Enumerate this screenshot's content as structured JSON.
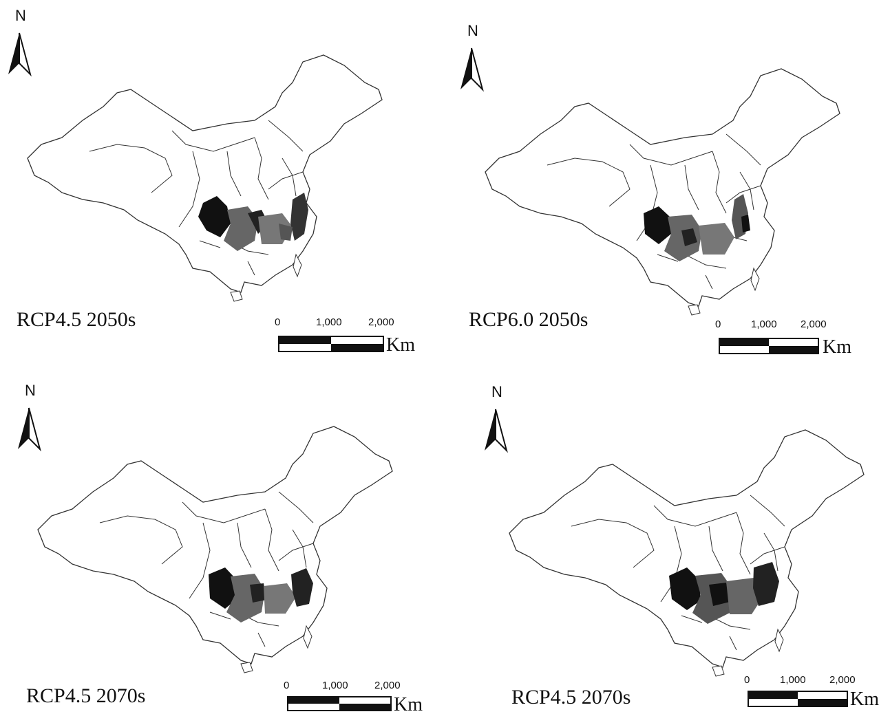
{
  "panels": [
    {
      "north": "N",
      "caption": "RCP4.5 2050s",
      "scale": {
        "ticks": [
          "0",
          "1,000",
          "2,000"
        ],
        "unit": "Km"
      }
    },
    {
      "north": "N",
      "caption": "RCP6.0 2050s",
      "scale": {
        "ticks": [
          "0",
          "1,000",
          "2,000"
        ],
        "unit": "Km"
      }
    },
    {
      "north": "N",
      "caption": "RCP4.5 2070s",
      "scale": {
        "ticks": [
          "0",
          "1,000",
          "2,000"
        ],
        "unit": "Km"
      }
    },
    {
      "north": "N",
      "caption": "RCP4.5 2070s",
      "scale": {
        "ticks": [
          "0",
          "1,000",
          "2,000"
        ],
        "unit": "Km"
      }
    }
  ],
  "colors": {
    "outline": "#333333",
    "high_suitability": "#111111",
    "medium_suitability": "#555555",
    "low_suitability": "#888888"
  }
}
